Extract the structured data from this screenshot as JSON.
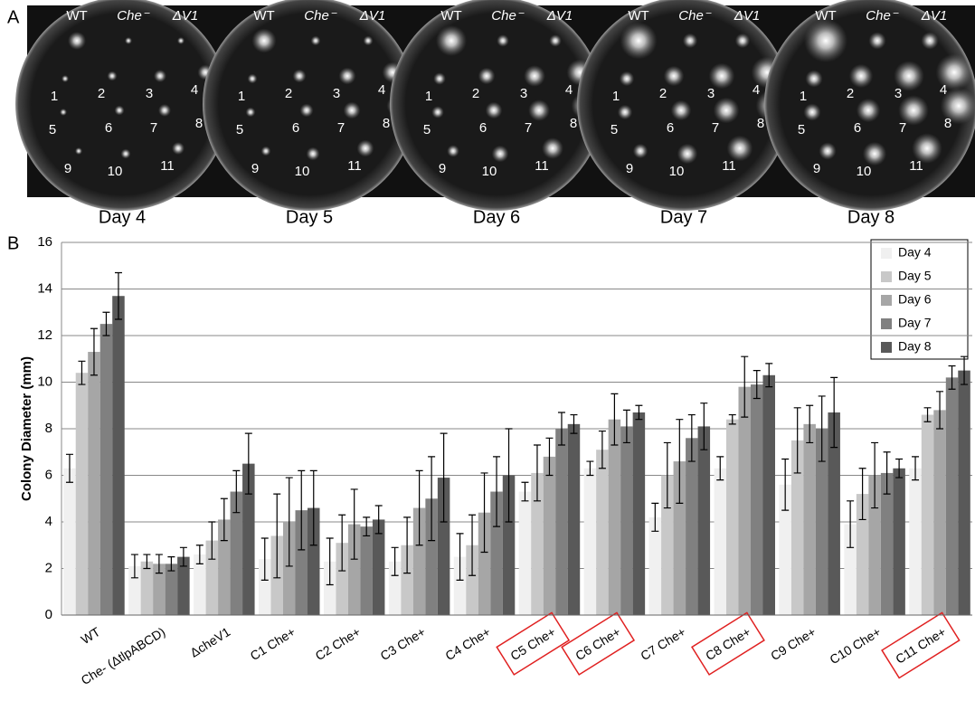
{
  "panel_labels": [
    "A",
    "B"
  ],
  "panel_a": {
    "strain_labels": [
      "WT",
      "Che⁻",
      "ΔV1"
    ],
    "colony_labels": [
      "1",
      "2",
      "3",
      "4",
      "5",
      "6",
      "7",
      "8",
      "9",
      "10",
      "11"
    ],
    "day_labels": [
      "Day 4",
      "Day 5",
      "Day 6",
      "Day 7",
      "Day 8"
    ]
  },
  "chart_data": {
    "type": "bar",
    "y_label": "Colony Diameter (mm)",
    "categories": [
      "WT",
      "Che- (ΔtlpABCD)",
      "ΔcheV1",
      "C1 Che+",
      "C2 Che+",
      "C3 Che+",
      "C4 Che+",
      "C5 Che+",
      "C6 Che+",
      "C7 Che+",
      "C8 Che+",
      "C9 Che+",
      "C10 Che+",
      "C11 Che+"
    ],
    "highlighted": [
      false,
      false,
      false,
      false,
      false,
      false,
      false,
      true,
      true,
      false,
      true,
      false,
      false,
      true
    ],
    "series": [
      {
        "name": "Day 4",
        "color": "#f0f0f0",
        "values": [
          6.3,
          2.1,
          2.6,
          2.4,
          2.3,
          2.3,
          2.5,
          5.3,
          6.3,
          4.2,
          6.3,
          5.6,
          3.9,
          6.3
        ],
        "errors": [
          0.6,
          0.5,
          0.4,
          0.9,
          1.0,
          0.6,
          1.0,
          0.4,
          0.3,
          0.6,
          0.5,
          1.1,
          1.0,
          0.5
        ]
      },
      {
        "name": "Day 5",
        "color": "#c8c8c8",
        "values": [
          10.4,
          2.3,
          3.2,
          3.4,
          3.1,
          3.0,
          3.0,
          6.1,
          7.1,
          6.0,
          8.4,
          7.5,
          5.2,
          8.6
        ],
        "errors": [
          0.5,
          0.3,
          0.8,
          1.8,
          1.2,
          1.2,
          1.3,
          1.2,
          0.8,
          1.4,
          0.2,
          1.4,
          1.1,
          0.3
        ]
      },
      {
        "name": "Day 6",
        "color": "#a6a6a6",
        "values": [
          11.3,
          2.2,
          4.1,
          4.0,
          3.9,
          4.6,
          4.4,
          6.8,
          8.4,
          6.6,
          9.8,
          8.2,
          6.0,
          8.8
        ],
        "errors": [
          1.0,
          0.4,
          0.9,
          1.9,
          1.5,
          1.6,
          1.7,
          0.8,
          1.1,
          1.8,
          1.3,
          0.8,
          1.4,
          0.8
        ]
      },
      {
        "name": "Day 7",
        "color": "#808080",
        "values": [
          12.5,
          2.2,
          5.3,
          4.5,
          3.8,
          5.0,
          5.3,
          8.0,
          8.1,
          7.6,
          9.9,
          8.0,
          6.1,
          10.2
        ],
        "errors": [
          0.5,
          0.3,
          0.9,
          1.7,
          0.4,
          1.8,
          1.5,
          0.7,
          0.7,
          1.0,
          0.6,
          1.4,
          0.9,
          0.5
        ]
      },
      {
        "name": "Day 8",
        "color": "#595959",
        "values": [
          13.7,
          2.5,
          6.5,
          4.6,
          4.1,
          5.9,
          6.0,
          8.2,
          8.7,
          8.1,
          10.3,
          8.7,
          6.3,
          10.5
        ],
        "errors": [
          1.0,
          0.4,
          1.3,
          1.6,
          0.6,
          1.9,
          2.0,
          0.4,
          0.3,
          1.0,
          0.5,
          1.5,
          0.4,
          0.6
        ]
      }
    ],
    "ylim": [
      0,
      16
    ],
    "yticks": [
      0,
      2,
      4,
      6,
      8,
      10,
      12,
      14,
      16
    ],
    "grid": true,
    "legend": "top-right"
  }
}
